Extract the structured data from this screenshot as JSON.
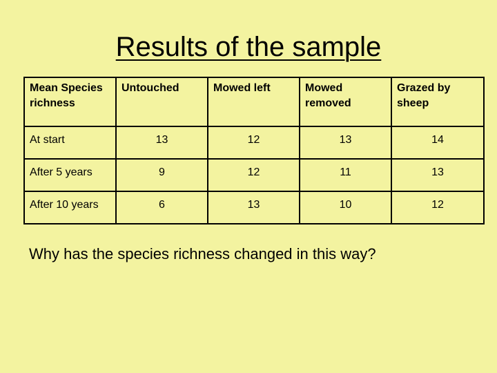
{
  "slide": {
    "title": "Results of the sample",
    "question": "Why has the species richness changed in this way?"
  },
  "table": {
    "headers": [
      "Mean Species richness",
      "Untouched",
      "Mowed left",
      "Mowed removed",
      "Grazed by sheep"
    ],
    "rows": [
      {
        "label": "At start",
        "values": [
          "13",
          "12",
          "13",
          "14"
        ]
      },
      {
        "label": "After 5 years",
        "values": [
          "9",
          "12",
          "11",
          "13"
        ]
      },
      {
        "label": "After 10 years",
        "values": [
          "6",
          "13",
          "10",
          "12"
        ]
      }
    ]
  }
}
